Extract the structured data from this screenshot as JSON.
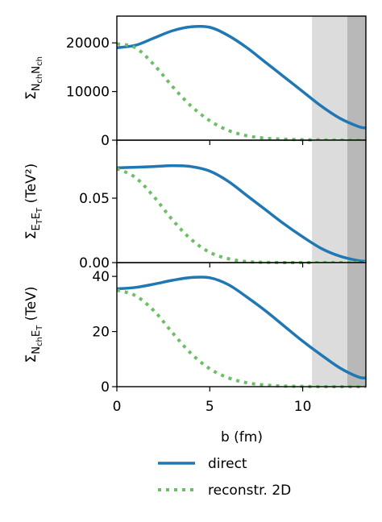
{
  "figure": {
    "xlabel": "b (fm)",
    "x_ticks": [
      "0",
      "5",
      "10"
    ],
    "legend": {
      "placement": "bottom-center",
      "entries": [
        {
          "label": "direct",
          "style": "solid",
          "color": "#1f77b4"
        },
        {
          "label": "reconstr. 2D",
          "style": "dotted",
          "color": "#6dbf67"
        }
      ]
    },
    "shaded_regions": [
      {
        "from": 10.5,
        "to": 12.4,
        "color": "#dcdcdc"
      },
      {
        "from": 12.4,
        "to": 13.4,
        "color": "#b8b8b8"
      }
    ]
  },
  "chart_data": [
    {
      "type": "line",
      "ylabel_main": "Σ",
      "ylabel_sub": "N",
      "ylabel_subsub": "ch",
      "ylabel_sub2": "N",
      "ylabel_subsub2": "ch",
      "ylabel_unit": "",
      "xlim": [
        0,
        13.4
      ],
      "ylim": [
        0,
        25500
      ],
      "y_ticks": [
        {
          "value": 0,
          "label": "0"
        },
        {
          "value": 10000,
          "label": "10000"
        },
        {
          "value": 20000,
          "label": "20000"
        }
      ],
      "x": [
        0,
        1,
        2,
        3,
        4,
        5,
        6,
        7,
        8,
        9,
        10,
        11,
        12,
        13,
        13.4
      ],
      "series": [
        {
          "name": "direct",
          "values": [
            19000,
            19500,
            21000,
            22500,
            23300,
            23200,
            21500,
            19000,
            16000,
            13000,
            10000,
            7000,
            4500,
            2800,
            2500
          ]
        },
        {
          "name": "reconstr. 2D",
          "values": [
            19800,
            19000,
            15500,
            11000,
            7000,
            4000,
            2000,
            900,
            400,
            200,
            100,
            50,
            20,
            10,
            5
          ]
        }
      ]
    },
    {
      "type": "line",
      "ylabel_main": "Σ",
      "ylabel_sub": "E",
      "ylabel_subsub": "T",
      "ylabel_sub2": "E",
      "ylabel_subsub2": "T",
      "ylabel_unit": "(TeV²)",
      "xlim": [
        0,
        13.4
      ],
      "ylim": [
        0,
        0.095
      ],
      "y_ticks": [
        {
          "value": 0,
          "label": "0.00"
        },
        {
          "value": 0.05,
          "label": "0.05"
        }
      ],
      "x": [
        0,
        1,
        2,
        3,
        4,
        5,
        6,
        7,
        8,
        9,
        10,
        11,
        12,
        13,
        13.4
      ],
      "series": [
        {
          "name": "direct",
          "values": [
            0.0735,
            0.074,
            0.0745,
            0.0752,
            0.0745,
            0.071,
            0.063,
            0.052,
            0.041,
            0.03,
            0.02,
            0.011,
            0.005,
            0.0015,
            0.001
          ]
        },
        {
          "name": "reconstr. 2D",
          "values": [
            0.073,
            0.066,
            0.051,
            0.033,
            0.018,
            0.008,
            0.003,
            0.0008,
            0.0002,
            0,
            0,
            0,
            0,
            0,
            0
          ]
        }
      ]
    },
    {
      "type": "line",
      "ylabel_main": "Σ",
      "ylabel_sub": "N",
      "ylabel_subsub": "ch",
      "ylabel_sub2": "E",
      "ylabel_subsub2": "T",
      "ylabel_unit": "(TeV)",
      "xlim": [
        0,
        13.4
      ],
      "ylim": [
        0,
        45
      ],
      "y_ticks": [
        {
          "value": 0,
          "label": "0"
        },
        {
          "value": 20,
          "label": "20"
        },
        {
          "value": 40,
          "label": "40"
        }
      ],
      "x": [
        0,
        1,
        2,
        3,
        4,
        5,
        6,
        7,
        8,
        9,
        10,
        11,
        12,
        13,
        13.4
      ],
      "series": [
        {
          "name": "direct",
          "values": [
            35.5,
            36,
            37.2,
            38.6,
            39.6,
            39.5,
            37,
            32.5,
            27.5,
            22,
            16.5,
            11.5,
            6.8,
            3.5,
            3.2
          ]
        },
        {
          "name": "reconstr. 2D",
          "values": [
            35,
            33,
            27.5,
            19.5,
            12,
            6.5,
            3.2,
            1.4,
            0.6,
            0.2,
            0.1,
            0,
            0,
            0,
            0
          ]
        }
      ]
    }
  ]
}
